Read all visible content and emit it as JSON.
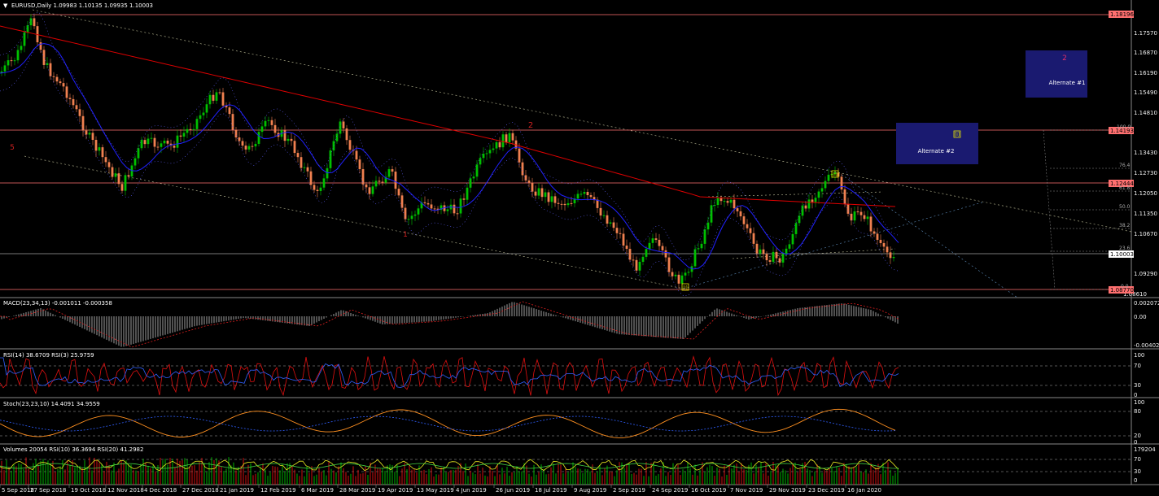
{
  "main": {
    "header": "EURUSD,Daily  1.09983 1.10135 1.09935 1.10003",
    "price_axis": [
      "1.17570",
      "1.16870",
      "1.16190",
      "1.15490",
      "1.14810",
      "1.13430",
      "1.12730",
      "1.12050",
      "1.11350",
      "1.10670",
      "1.09290",
      "1.08610"
    ],
    "price_marks": [
      "1.18196",
      "1.14193",
      "1.12444",
      "1.10003",
      "1.08770"
    ],
    "fib_levels": [
      "100.0",
      "76.4",
      "61.8",
      "50.0",
      "38.2",
      "23.6",
      "0.0"
    ],
    "wave_labels": {
      "a": "5",
      "b": "2",
      "c": "1",
      "d": "[i]",
      "e": "[i]",
      "f": "[i]"
    },
    "alt1": {
      "num": "2",
      "label": "Alternate #1"
    },
    "alt2": {
      "num": "[i]",
      "label": "Alternate #2"
    }
  },
  "macd": {
    "header": "MACD(23,34,13) -0.001011 -0.000358",
    "axis": [
      "0.002072",
      "0.00",
      "-0.004027"
    ]
  },
  "rsi": {
    "header": "RSI(14) 38.6709  RSI(3) 25.9759",
    "axis": [
      "100",
      "70",
      "30",
      "0"
    ]
  },
  "stoch": {
    "header": "Stoch(23,23,10) 14.4091 34.9559",
    "axis": [
      "100",
      "80",
      "20",
      "0"
    ]
  },
  "volumes": {
    "header": "Volumes 20054  RSI(10) 36.3694  RSI(20) 41.2982",
    "axis": [
      "179204",
      "70",
      "30",
      "0"
    ]
  },
  "dates": [
    "5 Sep 2018",
    "27 Sep 2018",
    "19 Oct 2018",
    "12 Nov 2018",
    "4 Dec 2018",
    "27 Dec 2018",
    "21 Jan 2019",
    "12 Feb 2019",
    "6 Mar 2019",
    "28 Mar 2019",
    "19 Apr 2019",
    "13 May 2019",
    "4 Jun 2019",
    "26 Jun 2019",
    "18 Jul 2019",
    "9 Aug 2019",
    "2 Sep 2019",
    "24 Sep 2019",
    "16 Oct 2019",
    "7 Nov 2019",
    "29 Nov 2019",
    "23 Dec 2019",
    "16 Jan 2020"
  ],
  "colors": {
    "bull": "#00c000",
    "bear": "#f08050",
    "ma200": "#e00000",
    "ma50": "#2020ff",
    "hline": "#ff7070",
    "alt_box": "#1a1a70"
  }
}
